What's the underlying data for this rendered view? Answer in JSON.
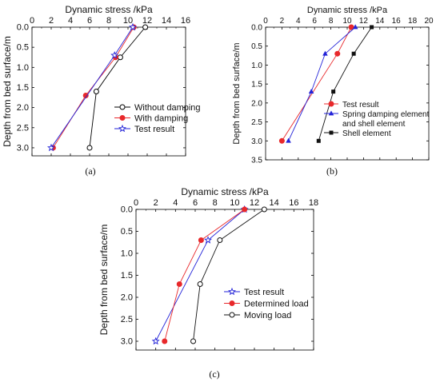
{
  "chart_data": [
    {
      "type": "line",
      "panel_label": "(a)",
      "xlabel": "Dynamic stress /kPa",
      "ylabel": "Depth from bed surface/m",
      "xlim": [
        0,
        16
      ],
      "ylim": [
        0.0,
        3.2
      ],
      "y_inverted": true,
      "x_axis_position": "top",
      "xticks": [
        "0",
        "2",
        "4",
        "6",
        "8",
        "10",
        "12",
        "14",
        "16"
      ],
      "yticks": [
        "0.0",
        "0.5",
        "1.0",
        "1.5",
        "2.0",
        "2.5",
        "3.0"
      ],
      "legend_position": "lower-right",
      "series": [
        {
          "name": "Without damping",
          "marker": "open-circle",
          "color": "#000000",
          "points": [
            [
              11.8,
              0.0
            ],
            [
              9.2,
              0.75
            ],
            [
              6.7,
              1.6
            ],
            [
              6.0,
              3.0
            ]
          ]
        },
        {
          "name": "With damping",
          "marker": "filled-circle",
          "color": "#e8282b",
          "points": [
            [
              10.6,
              0.0
            ],
            [
              8.7,
              0.75
            ],
            [
              5.6,
              1.7
            ],
            [
              2.2,
              3.0
            ]
          ]
        },
        {
          "name": "Test result",
          "marker": "open-star",
          "color": "#2323d8",
          "points": [
            [
              10.5,
              0.0
            ],
            [
              8.6,
              0.7
            ],
            [
              2.0,
              3.0
            ]
          ]
        }
      ]
    },
    {
      "type": "line",
      "panel_label": "(b)",
      "xlabel": "Dynamic stress /kPa",
      "ylabel": "Depth from bed surface/m",
      "xlim": [
        0,
        20
      ],
      "ylim": [
        0.0,
        3.5
      ],
      "y_inverted": true,
      "x_axis_position": "top",
      "xticks": [
        "0",
        "2",
        "4",
        "6",
        "8",
        "10",
        "12",
        "14",
        "16",
        "18",
        "20"
      ],
      "yticks": [
        "0.0",
        "0.5",
        "1.0",
        "1.5",
        "2.0",
        "2.5",
        "3.0",
        "3.5"
      ],
      "legend_position": "lower-right",
      "series": [
        {
          "name": "Test result",
          "marker": "filled-circle",
          "color": "#e8282b",
          "points": [
            [
              10.5,
              0.0
            ],
            [
              8.8,
              0.7
            ],
            [
              2.0,
              3.0
            ]
          ]
        },
        {
          "name": "Spring damping element\nand shell element",
          "marker": "filled-triangle",
          "color": "#2323d8",
          "points": [
            [
              11.0,
              0.0
            ],
            [
              7.3,
              0.7
            ],
            [
              5.6,
              1.7
            ],
            [
              2.8,
              3.0
            ]
          ]
        },
        {
          "name": "Shell element",
          "marker": "filled-square",
          "color": "#111111",
          "points": [
            [
              13.0,
              0.0
            ],
            [
              10.8,
              0.7
            ],
            [
              8.3,
              1.7
            ],
            [
              6.5,
              3.0
            ]
          ]
        }
      ]
    },
    {
      "type": "line",
      "panel_label": "(c)",
      "xlabel": "Dynamic stress /kPa",
      "ylabel": "Depth from bed surface/m",
      "xlim": [
        0,
        18
      ],
      "ylim": [
        0.0,
        3.2
      ],
      "y_inverted": true,
      "x_axis_position": "top",
      "xticks": [
        "0",
        "2",
        "4",
        "6",
        "8",
        "10",
        "12",
        "14",
        "16",
        "18"
      ],
      "yticks": [
        "0.0",
        "0.5",
        "1.0",
        "1.5",
        "2.0",
        "2.5",
        "3.0"
      ],
      "legend_position": "lower-right",
      "series": [
        {
          "name": "Test result",
          "marker": "open-star",
          "color": "#2323d8",
          "points": [
            [
              11.0,
              0.0
            ],
            [
              7.3,
              0.7
            ],
            [
              2.0,
              3.0
            ]
          ]
        },
        {
          "name": "Determined load",
          "marker": "filled-circle",
          "color": "#e8282b",
          "points": [
            [
              11.0,
              0.0
            ],
            [
              6.6,
              0.7
            ],
            [
              4.4,
              1.7
            ],
            [
              2.9,
              3.0
            ]
          ]
        },
        {
          "name": "Moving load",
          "marker": "open-circle",
          "color": "#111111",
          "points": [
            [
              13.0,
              0.0
            ],
            [
              8.5,
              0.7
            ],
            [
              6.5,
              1.7
            ],
            [
              5.8,
              3.0
            ]
          ]
        }
      ]
    }
  ]
}
